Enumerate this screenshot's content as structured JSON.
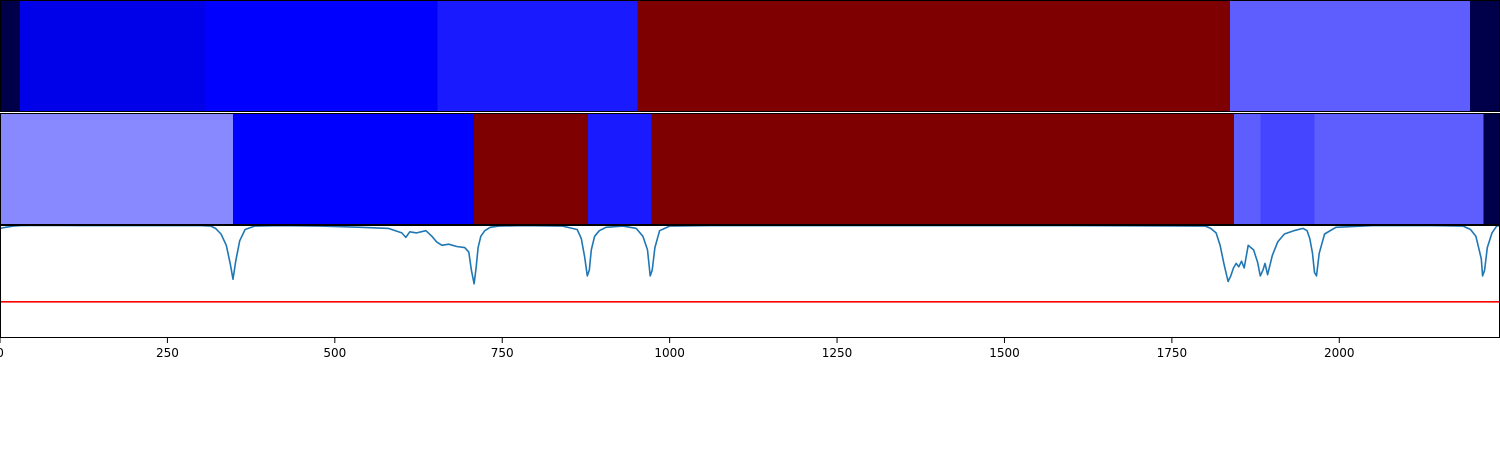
{
  "chart_data": [
    {
      "type": "segments",
      "xlim": [
        0,
        2240
      ],
      "segments": [
        {
          "start": 0,
          "end": 30,
          "color": "#00004a"
        },
        {
          "start": 30,
          "end": 307,
          "color": "#0000e9"
        },
        {
          "start": 307,
          "end": 653,
          "color": "#0000ff"
        },
        {
          "start": 653,
          "end": 952,
          "color": "#1a1aff"
        },
        {
          "start": 952,
          "end": 1837,
          "color": "#7f0000"
        },
        {
          "start": 1837,
          "end": 2195,
          "color": "#5e5eff"
        },
        {
          "start": 2195,
          "end": 2240,
          "color": "#00004a"
        }
      ]
    },
    {
      "type": "segments",
      "xlim": [
        0,
        2240
      ],
      "segments": [
        {
          "start": 0,
          "end": 348,
          "color": "#8888ff"
        },
        {
          "start": 348,
          "end": 708,
          "color": "#0000ff"
        },
        {
          "start": 708,
          "end": 878,
          "color": "#7f0000"
        },
        {
          "start": 878,
          "end": 973,
          "color": "#1a1aff"
        },
        {
          "start": 973,
          "end": 1843,
          "color": "#7f0000"
        },
        {
          "start": 1843,
          "end": 1882,
          "color": "#5e5eff"
        },
        {
          "start": 1882,
          "end": 1963,
          "color": "#4545ff"
        },
        {
          "start": 1963,
          "end": 2215,
          "color": "#5e5eff"
        },
        {
          "start": 2215,
          "end": 2240,
          "color": "#00004a"
        }
      ]
    },
    {
      "type": "line",
      "xlim": [
        0,
        2240
      ],
      "ylim": [
        0,
        1
      ],
      "line_color": "#1f77b4",
      "threshold": {
        "y": 0.32,
        "color": "#ff0000"
      },
      "series": [
        {
          "x": [
            0,
            8,
            20,
            30,
            60,
            120,
            200,
            300,
            315,
            322,
            330,
            338,
            344,
            348,
            352,
            358,
            366,
            380,
            420,
            480,
            540,
            580,
            600,
            606,
            612,
            622,
            636,
            645,
            652,
            660,
            670,
            682,
            694,
            700,
            704,
            708,
            711,
            714,
            718,
            724,
            732,
            745,
            780,
            840,
            862,
            868,
            873,
            877,
            880,
            883,
            888,
            895,
            905,
            930,
            950,
            960,
            967,
            971,
            974,
            978,
            985,
            1000,
            1060,
            1200,
            1400,
            1600,
            1800,
            1808,
            1816,
            1822,
            1828,
            1834,
            1838,
            1842,
            1846,
            1850,
            1854,
            1858,
            1864,
            1872,
            1878,
            1882,
            1886,
            1889,
            1893,
            1900,
            1908,
            1918,
            1932,
            1946,
            1952,
            1956,
            1960,
            1963,
            1966,
            1970,
            1978,
            1995,
            2050,
            2140,
            2185,
            2196,
            2204,
            2208,
            2212,
            2214,
            2217,
            2221,
            2228,
            2235,
            2240
          ],
          "y": [
            0.97,
            0.98,
            0.99,
            0.995,
            0.997,
            0.995,
            0.995,
            0.995,
            0.99,
            0.97,
            0.92,
            0.82,
            0.65,
            0.52,
            0.68,
            0.86,
            0.96,
            0.99,
            0.995,
            0.99,
            0.98,
            0.97,
            0.93,
            0.89,
            0.94,
            0.93,
            0.95,
            0.9,
            0.85,
            0.82,
            0.83,
            0.81,
            0.8,
            0.76,
            0.6,
            0.48,
            0.62,
            0.8,
            0.9,
            0.95,
            0.98,
            0.99,
            0.995,
            0.99,
            0.96,
            0.88,
            0.72,
            0.55,
            0.6,
            0.78,
            0.9,
            0.95,
            0.98,
            0.99,
            0.97,
            0.9,
            0.78,
            0.55,
            0.6,
            0.8,
            0.95,
            0.99,
            0.995,
            0.995,
            0.995,
            0.995,
            0.99,
            0.97,
            0.93,
            0.82,
            0.65,
            0.5,
            0.55,
            0.62,
            0.66,
            0.63,
            0.68,
            0.62,
            0.82,
            0.78,
            0.67,
            0.55,
            0.6,
            0.66,
            0.56,
            0.73,
            0.85,
            0.92,
            0.95,
            0.97,
            0.95,
            0.88,
            0.75,
            0.58,
            0.55,
            0.75,
            0.92,
            0.98,
            0.995,
            0.995,
            0.99,
            0.96,
            0.9,
            0.8,
            0.7,
            0.55,
            0.6,
            0.8,
            0.93,
            0.99,
            0.995
          ]
        }
      ],
      "xticks": [
        0,
        250,
        500,
        750,
        1000,
        1250,
        1500,
        1750,
        2000
      ],
      "xtick_labels": [
        "0",
        "250",
        "500",
        "750",
        "1000",
        "1250",
        "1500",
        "1750",
        "2000"
      ]
    }
  ]
}
